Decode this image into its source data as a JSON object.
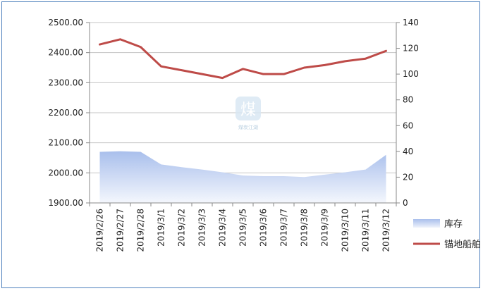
{
  "chart_data": {
    "type": "area+line",
    "categories": [
      "2019/2/26",
      "2019/2/27",
      "2019/2/28",
      "2019/3/1",
      "2019/3/2",
      "2019/3/3",
      "2019/3/4",
      "2019/3/5",
      "2019/3/6",
      "2019/3/7",
      "2019/3/8",
      "2019/3/9",
      "2019/3/10",
      "2019/3/11",
      "2019/3/12"
    ],
    "series": [
      {
        "name": "库存",
        "type": "area",
        "axis": "left",
        "color": "#a9bfec",
        "values": [
          2070,
          2072,
          2070,
          2028,
          2019,
          2011,
          2002,
          1991,
          1989,
          1989,
          1986,
          1994,
          2002,
          2011,
          2060
        ]
      },
      {
        "name": "锚地船舶",
        "type": "line",
        "axis": "right",
        "color": "#be4b48",
        "values": [
          123,
          127,
          121,
          106,
          103,
          100,
          97,
          104,
          100,
          100,
          105,
          107,
          110,
          112,
          118
        ]
      }
    ],
    "y_left": {
      "min": 1900,
      "max": 2500,
      "step": 100,
      "ticks": [
        "1900.00",
        "2000.00",
        "2100.00",
        "2200.00",
        "2300.00",
        "2400.00",
        "2500.00"
      ]
    },
    "y_right": {
      "min": 0,
      "max": 140,
      "step": 20,
      "ticks": [
        "0",
        "20",
        "40",
        "60",
        "80",
        "100",
        "120",
        "140"
      ]
    },
    "grid": true,
    "legend_position": "right",
    "watermark": {
      "glyph": "煤",
      "text": "煤炭江湖"
    }
  }
}
